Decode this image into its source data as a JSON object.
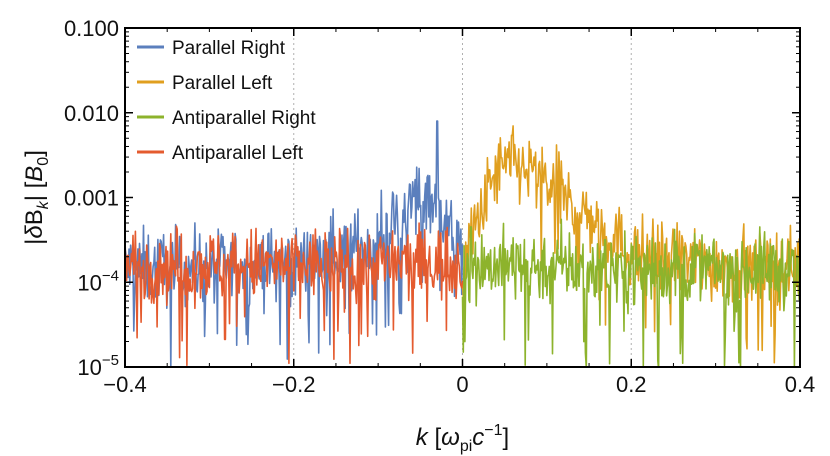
{
  "chart_data": {
    "type": "line",
    "title": "",
    "xlabel": "k [ω_pi c^-1]",
    "ylabel": "|δB_k| [B_0]",
    "x_axis": {
      "range": [
        -0.4,
        0.4
      ],
      "ticks": [
        -0.4,
        -0.2,
        0,
        0.2,
        0.4
      ],
      "tick_labels": [
        "−0.4",
        "−0.2",
        "0",
        "0.2",
        "0.4"
      ],
      "gridlines": [
        -0.2,
        0,
        0.2
      ]
    },
    "y_axis": {
      "scale": "log",
      "range": [
        1e-05,
        0.1
      ],
      "ticks": [
        1e-05,
        0.0001,
        0.001,
        0.01,
        0.1
      ],
      "tick_labels": [
        {
          "base": "10",
          "exp": "−5"
        },
        {
          "base": "10",
          "exp": "−4"
        },
        {
          "base": "0.001",
          "exp": ""
        },
        {
          "base": "0.010",
          "exp": ""
        },
        {
          "base": "0.100",
          "exp": ""
        }
      ]
    },
    "legend_position": "top-left",
    "series": [
      {
        "name": "Parallel Right",
        "color": "#5b7fbd",
        "k_range": [
          -0.4,
          0
        ],
        "envelope_k": [
          -0.4,
          -0.3,
          -0.2,
          -0.15,
          -0.1,
          -0.08,
          -0.06,
          -0.04,
          -0.02,
          0.0
        ],
        "envelope_median": [
          0.00015,
          0.00015,
          0.00016,
          0.00022,
          0.0003,
          0.00055,
          0.0009,
          0.0012,
          0.0006,
          0.00015
        ],
        "peak": {
          "k": -0.03,
          "value": 0.008
        }
      },
      {
        "name": "Parallel Left",
        "color": "#e09f1f",
        "k_range": [
          0,
          0.4
        ],
        "envelope_k": [
          0.0,
          0.02,
          0.04,
          0.06,
          0.08,
          0.1,
          0.14,
          0.2,
          0.3,
          0.4
        ],
        "envelope_median": [
          0.00015,
          0.0006,
          0.002,
          0.0025,
          0.002,
          0.0015,
          0.0007,
          0.00022,
          0.00016,
          0.00015
        ],
        "peak": {
          "k": 0.06,
          "value": 0.007
        }
      },
      {
        "name": "Antiparallel Right",
        "color": "#8db32c",
        "k_range": [
          0,
          0.4
        ],
        "envelope_k": [
          0.0,
          0.2,
          0.4
        ],
        "envelope_median": [
          0.00016,
          0.00015,
          0.00014
        ],
        "peak": {
          "k": 0.01,
          "value": 0.00045
        }
      },
      {
        "name": "Antiparallel Left",
        "color": "#e45b2f",
        "k_range": [
          -0.4,
          0
        ],
        "envelope_k": [
          -0.4,
          -0.2,
          0.0
        ],
        "envelope_median": [
          0.00016,
          0.00016,
          0.00017
        ],
        "peak": {
          "k": -0.02,
          "value": 0.0004
        }
      }
    ]
  }
}
